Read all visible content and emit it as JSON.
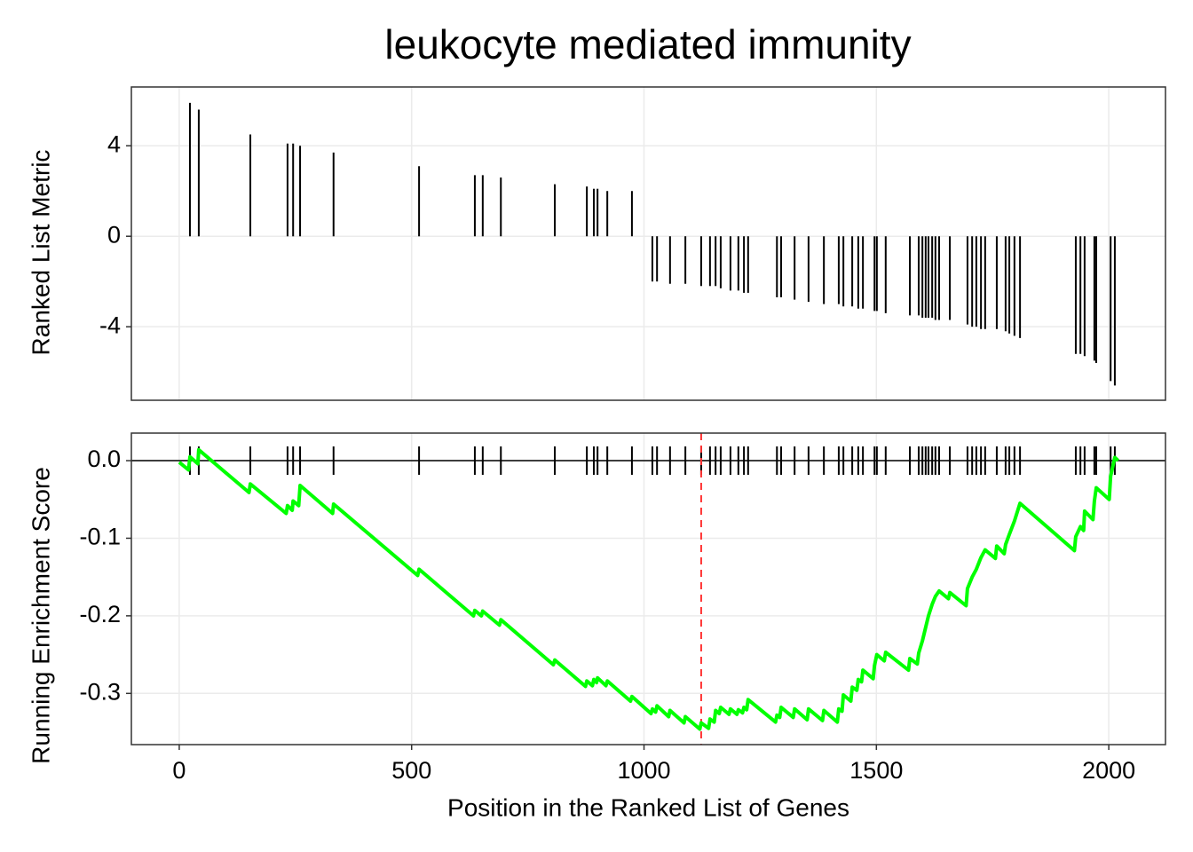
{
  "chart_data": [
    {
      "type": "bar",
      "title": "leukocyte mediated immunity",
      "ylabel": "Ranked List Metric",
      "color": "#000000",
      "grid": true,
      "x": [
        23,
        42,
        153,
        233,
        245,
        260,
        332,
        516,
        636,
        653,
        692,
        808,
        877,
        892,
        900,
        921,
        974,
        1018,
        1028,
        1056,
        1089,
        1123,
        1142,
        1154,
        1165,
        1186,
        1203,
        1215,
        1224,
        1286,
        1295,
        1324,
        1354,
        1387,
        1419,
        1429,
        1448,
        1461,
        1471,
        1496,
        1501,
        1520,
        1572,
        1591,
        1599,
        1606,
        1612,
        1620,
        1627,
        1635,
        1658,
        1696,
        1706,
        1715,
        1725,
        1734,
        1759,
        1778,
        1786,
        1797,
        1809,
        1929,
        1939,
        1948,
        1969,
        1973,
        2004,
        2013
      ],
      "values": [
        5.9,
        5.6,
        4.5,
        4.1,
        4.1,
        4.0,
        3.7,
        3.1,
        2.7,
        2.7,
        2.6,
        2.3,
        2.2,
        2.1,
        2.1,
        2.0,
        2.0,
        -2.0,
        -2.0,
        -2.1,
        -2.1,
        -2.2,
        -2.2,
        -2.2,
        -2.3,
        -2.4,
        -2.4,
        -2.5,
        -2.5,
        -2.7,
        -2.7,
        -2.8,
        -2.9,
        -3.0,
        -3.0,
        -3.1,
        -3.1,
        -3.2,
        -3.2,
        -3.3,
        -3.3,
        -3.4,
        -3.5,
        -3.5,
        -3.6,
        -3.6,
        -3.6,
        -3.6,
        -3.7,
        -3.7,
        -3.7,
        -3.9,
        -4.0,
        -4.0,
        -4.1,
        -4.1,
        -4.1,
        -4.2,
        -4.3,
        -4.4,
        -4.5,
        -5.2,
        -5.2,
        -5.3,
        -5.5,
        -5.6,
        -6.4,
        -6.6
      ],
      "xlim": [
        -103,
        2122
      ],
      "xticks": [
        0,
        500,
        1000,
        1500,
        2000
      ],
      "ylim": [
        -7.25,
        6.6
      ],
      "yticks": [
        -4,
        0,
        4
      ]
    },
    {
      "type": "line",
      "ylabel": "Running Enrichment Score",
      "xlabel": "Position in the Ranked List of Genes",
      "color": "#00ff00",
      "grid": true,
      "rug_color": "#000000",
      "reference_line": {
        "x": 1123,
        "color": "#ff3333"
      },
      "x": [
        0,
        20,
        23,
        40,
        42,
        150,
        153,
        230,
        233,
        243,
        245,
        257,
        260,
        330,
        332,
        513,
        516,
        633,
        636,
        650,
        653,
        689,
        692,
        805,
        808,
        874,
        877,
        889,
        892,
        898,
        900,
        918,
        921,
        971,
        974,
        1015,
        1018,
        1025,
        1028,
        1053,
        1056,
        1086,
        1089,
        1120,
        1123,
        1139,
        1142,
        1151,
        1154,
        1162,
        1165,
        1183,
        1186,
        1200,
        1203,
        1212,
        1215,
        1221,
        1224,
        1283,
        1286,
        1292,
        1295,
        1321,
        1324,
        1351,
        1354,
        1384,
        1387,
        1416,
        1419,
        1426,
        1429,
        1445,
        1448,
        1458,
        1461,
        1468,
        1471,
        1493,
        1496,
        1501,
        1517,
        1520,
        1569,
        1572,
        1588,
        1591,
        1599,
        1606,
        1612,
        1620,
        1627,
        1635,
        1655,
        1658,
        1693,
        1696,
        1706,
        1715,
        1725,
        1734,
        1756,
        1759,
        1775,
        1778,
        1786,
        1797,
        1809,
        1926,
        1929,
        1939,
        1946,
        1948,
        1966,
        1969,
        1973,
        2001,
        2004,
        2013,
        2020
      ],
      "values": [
        -0.002,
        -0.012,
        0.005,
        -0.004,
        0.014,
        -0.041,
        -0.03,
        -0.068,
        -0.058,
        -0.064,
        -0.052,
        -0.058,
        -0.032,
        -0.068,
        -0.056,
        -0.148,
        -0.14,
        -0.2,
        -0.193,
        -0.2,
        -0.194,
        -0.212,
        -0.205,
        -0.263,
        -0.257,
        -0.291,
        -0.284,
        -0.29,
        -0.282,
        -0.286,
        -0.28,
        -0.29,
        -0.284,
        -0.31,
        -0.304,
        -0.326,
        -0.32,
        -0.324,
        -0.316,
        -0.33,
        -0.322,
        -0.338,
        -0.33,
        -0.346,
        -0.338,
        -0.345,
        -0.333,
        -0.337,
        -0.322,
        -0.326,
        -0.318,
        -0.327,
        -0.32,
        -0.327,
        -0.321,
        -0.325,
        -0.318,
        -0.321,
        -0.308,
        -0.337,
        -0.328,
        -0.331,
        -0.318,
        -0.331,
        -0.32,
        -0.334,
        -0.32,
        -0.335,
        -0.322,
        -0.337,
        -0.32,
        -0.323,
        -0.302,
        -0.31,
        -0.292,
        -0.296,
        -0.282,
        -0.285,
        -0.27,
        -0.281,
        -0.264,
        -0.25,
        -0.258,
        -0.247,
        -0.27,
        -0.255,
        -0.262,
        -0.248,
        -0.232,
        -0.215,
        -0.2,
        -0.185,
        -0.175,
        -0.168,
        -0.178,
        -0.17,
        -0.187,
        -0.165,
        -0.15,
        -0.14,
        -0.125,
        -0.115,
        -0.126,
        -0.11,
        -0.12,
        -0.108,
        -0.095,
        -0.078,
        -0.055,
        -0.116,
        -0.098,
        -0.085,
        -0.09,
        -0.065,
        -0.076,
        -0.052,
        -0.035,
        -0.05,
        -0.02,
        0.004,
        0
      ],
      "xlim": [
        -103,
        2122
      ],
      "xticks": [
        0,
        500,
        1000,
        1500,
        2000
      ],
      "ylim": [
        -0.366,
        0.0355
      ],
      "yticks": [
        -0.3,
        -0.2,
        -0.1,
        {
          "value": 0,
          "label": "0.0"
        }
      ]
    }
  ]
}
